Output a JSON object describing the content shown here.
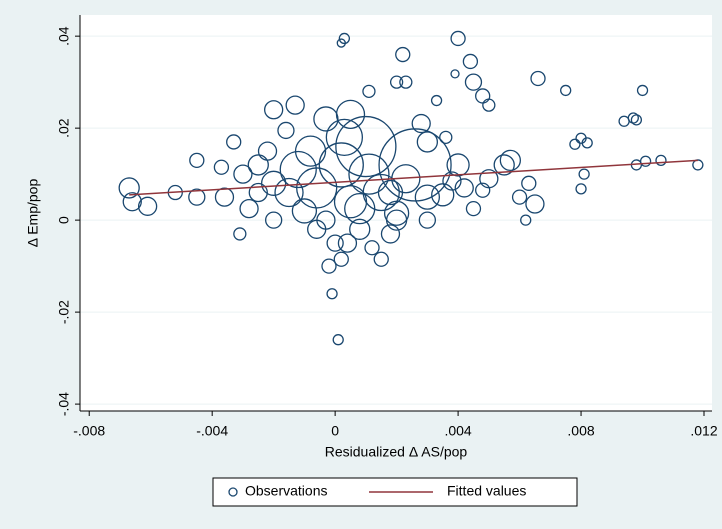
{
  "chart_data": {
    "type": "scatter",
    "x_label": "Residualized Δ AS/pop",
    "y_label": "Δ Emp/pop",
    "xlim": [
      -0.0083,
      0.01226
    ],
    "ylim": [
      -0.0415,
      0.0446
    ],
    "xticks": [
      {
        "value": -0.008,
        "label": "-.008"
      },
      {
        "value": -0.004,
        "label": "-.004"
      },
      0,
      {
        "value": 0.004,
        "label": ".004"
      },
      {
        "value": 0.008,
        "label": ".008"
      },
      {
        "value": 0.012,
        "label": ".012"
      }
    ],
    "yticks": [
      {
        "value": -0.04,
        "label": "-.04"
      },
      {
        "value": -0.02,
        "label": "-.02"
      },
      0,
      {
        "value": 0.02,
        "label": ".02"
      },
      {
        "value": 0.04,
        "label": ".04"
      }
    ],
    "grid": true,
    "legend": "bottom",
    "series": [
      {
        "name": "Observations",
        "type": "scatter",
        "color": "#1a476f",
        "x": [
          0.0003,
          0.0002,
          0.004,
          0.0022,
          0.0044,
          0.0039,
          0.0066,
          0.0045,
          0.0048,
          0.005,
          0.002,
          0.0023,
          0.0075,
          0.01,
          0.0097,
          0.0094,
          0.0098,
          0.008,
          0.0078,
          0.0082,
          0.0101,
          0.0106,
          0.0098,
          0.0118,
          0.008,
          0.0081,
          0.0062,
          0.0065,
          0.006,
          0.0063,
          0.0055,
          0.0057,
          0.005,
          0.0045,
          0.0048,
          -0.0067,
          -0.0066,
          -0.0061,
          -0.0052,
          -0.0045,
          -0.0045,
          -0.0037,
          -0.0036,
          -0.0033,
          -0.0031,
          -0.003,
          -0.0028,
          -0.0025,
          -0.0022,
          -0.002,
          -0.0016,
          0.0002,
          0.001,
          -0.0006,
          0.0015,
          -0.0012,
          0.0005,
          0.0003,
          0.0026,
          0.002,
          0.0018,
          -0.0015,
          0.0008,
          -0.0003,
          0,
          0.0002,
          -0.0002,
          -0.0001,
          0.0001,
          0.0012,
          0.0015,
          0.0018,
          0.002,
          0.003,
          0.0035,
          0.0038,
          0.004,
          0.003,
          0.0028,
          0.0033,
          -0.0013,
          -0.0003,
          0.0005,
          0.0011,
          0.0008,
          -0.002,
          -0.0025,
          0.0011,
          -0.0008,
          0.0023,
          -0.001,
          -0.0006,
          0.0004,
          0.003,
          -0.002,
          0.0036,
          0.0042
        ],
        "y": [
          0.0395,
          0.0385,
          0.0395,
          0.036,
          0.0345,
          0.0318,
          0.0308,
          0.03,
          0.027,
          0.025,
          0.03,
          0.03,
          0.0282,
          0.0282,
          0.0222,
          0.0215,
          0.0218,
          0.0178,
          0.0165,
          0.0168,
          0.0128,
          0.013,
          0.012,
          0.012,
          0.0068,
          0.01,
          0,
          0.0035,
          0.005,
          0.008,
          0.012,
          0.013,
          0.009,
          0.0025,
          0.0065,
          0.007,
          0.004,
          0.003,
          0.006,
          0.013,
          0.005,
          0.0115,
          0.005,
          0.017,
          -0.003,
          0.01,
          0.0025,
          0.006,
          0.015,
          0.024,
          0.0195,
          0.012,
          0.016,
          0.007,
          0.006,
          0.011,
          0.004,
          0.018,
          0.012,
          0,
          0.006,
          0.006,
          -0.002,
          0,
          -0.005,
          -0.0085,
          -0.01,
          -0.016,
          -0.026,
          -0.006,
          -0.0085,
          -0.003,
          0.0015,
          0.005,
          0.0055,
          0.0085,
          0.012,
          0.017,
          0.021,
          0.026,
          0.025,
          0.022,
          0.023,
          0.028,
          0.0025,
          0.008,
          0.012,
          0.01,
          0.015,
          0.009,
          0.002,
          -0.002,
          -0.005,
          0,
          0,
          0.018,
          0.007
        ],
        "sizes": [
          5,
          4,
          7,
          7,
          7,
          4,
          7,
          8,
          7,
          6,
          6,
          6,
          5,
          5,
          5,
          5,
          5,
          5,
          5,
          5,
          5,
          5,
          5,
          5,
          5,
          5,
          5,
          9,
          7,
          7,
          10,
          10,
          9,
          7,
          7,
          10,
          9,
          9,
          7,
          7,
          8,
          7,
          9,
          7,
          6,
          9,
          9,
          9,
          9,
          9,
          8,
          22,
          30,
          20,
          18,
          18,
          16,
          18,
          36,
          10,
          12,
          14,
          10,
          9,
          8,
          7,
          7,
          5,
          5,
          7,
          7,
          9,
          12,
          12,
          11,
          9,
          11,
          10,
          9,
          5,
          9,
          12,
          14,
          6,
          15,
          12,
          10,
          20,
          15,
          14,
          12,
          9,
          9,
          8,
          8,
          6,
          9
        ]
      },
      {
        "name": "Fitted values",
        "type": "line",
        "color": "#90353b",
        "x": [
          -0.0067,
          0.0118
        ],
        "y": [
          0.0055,
          0.013
        ]
      }
    ]
  }
}
